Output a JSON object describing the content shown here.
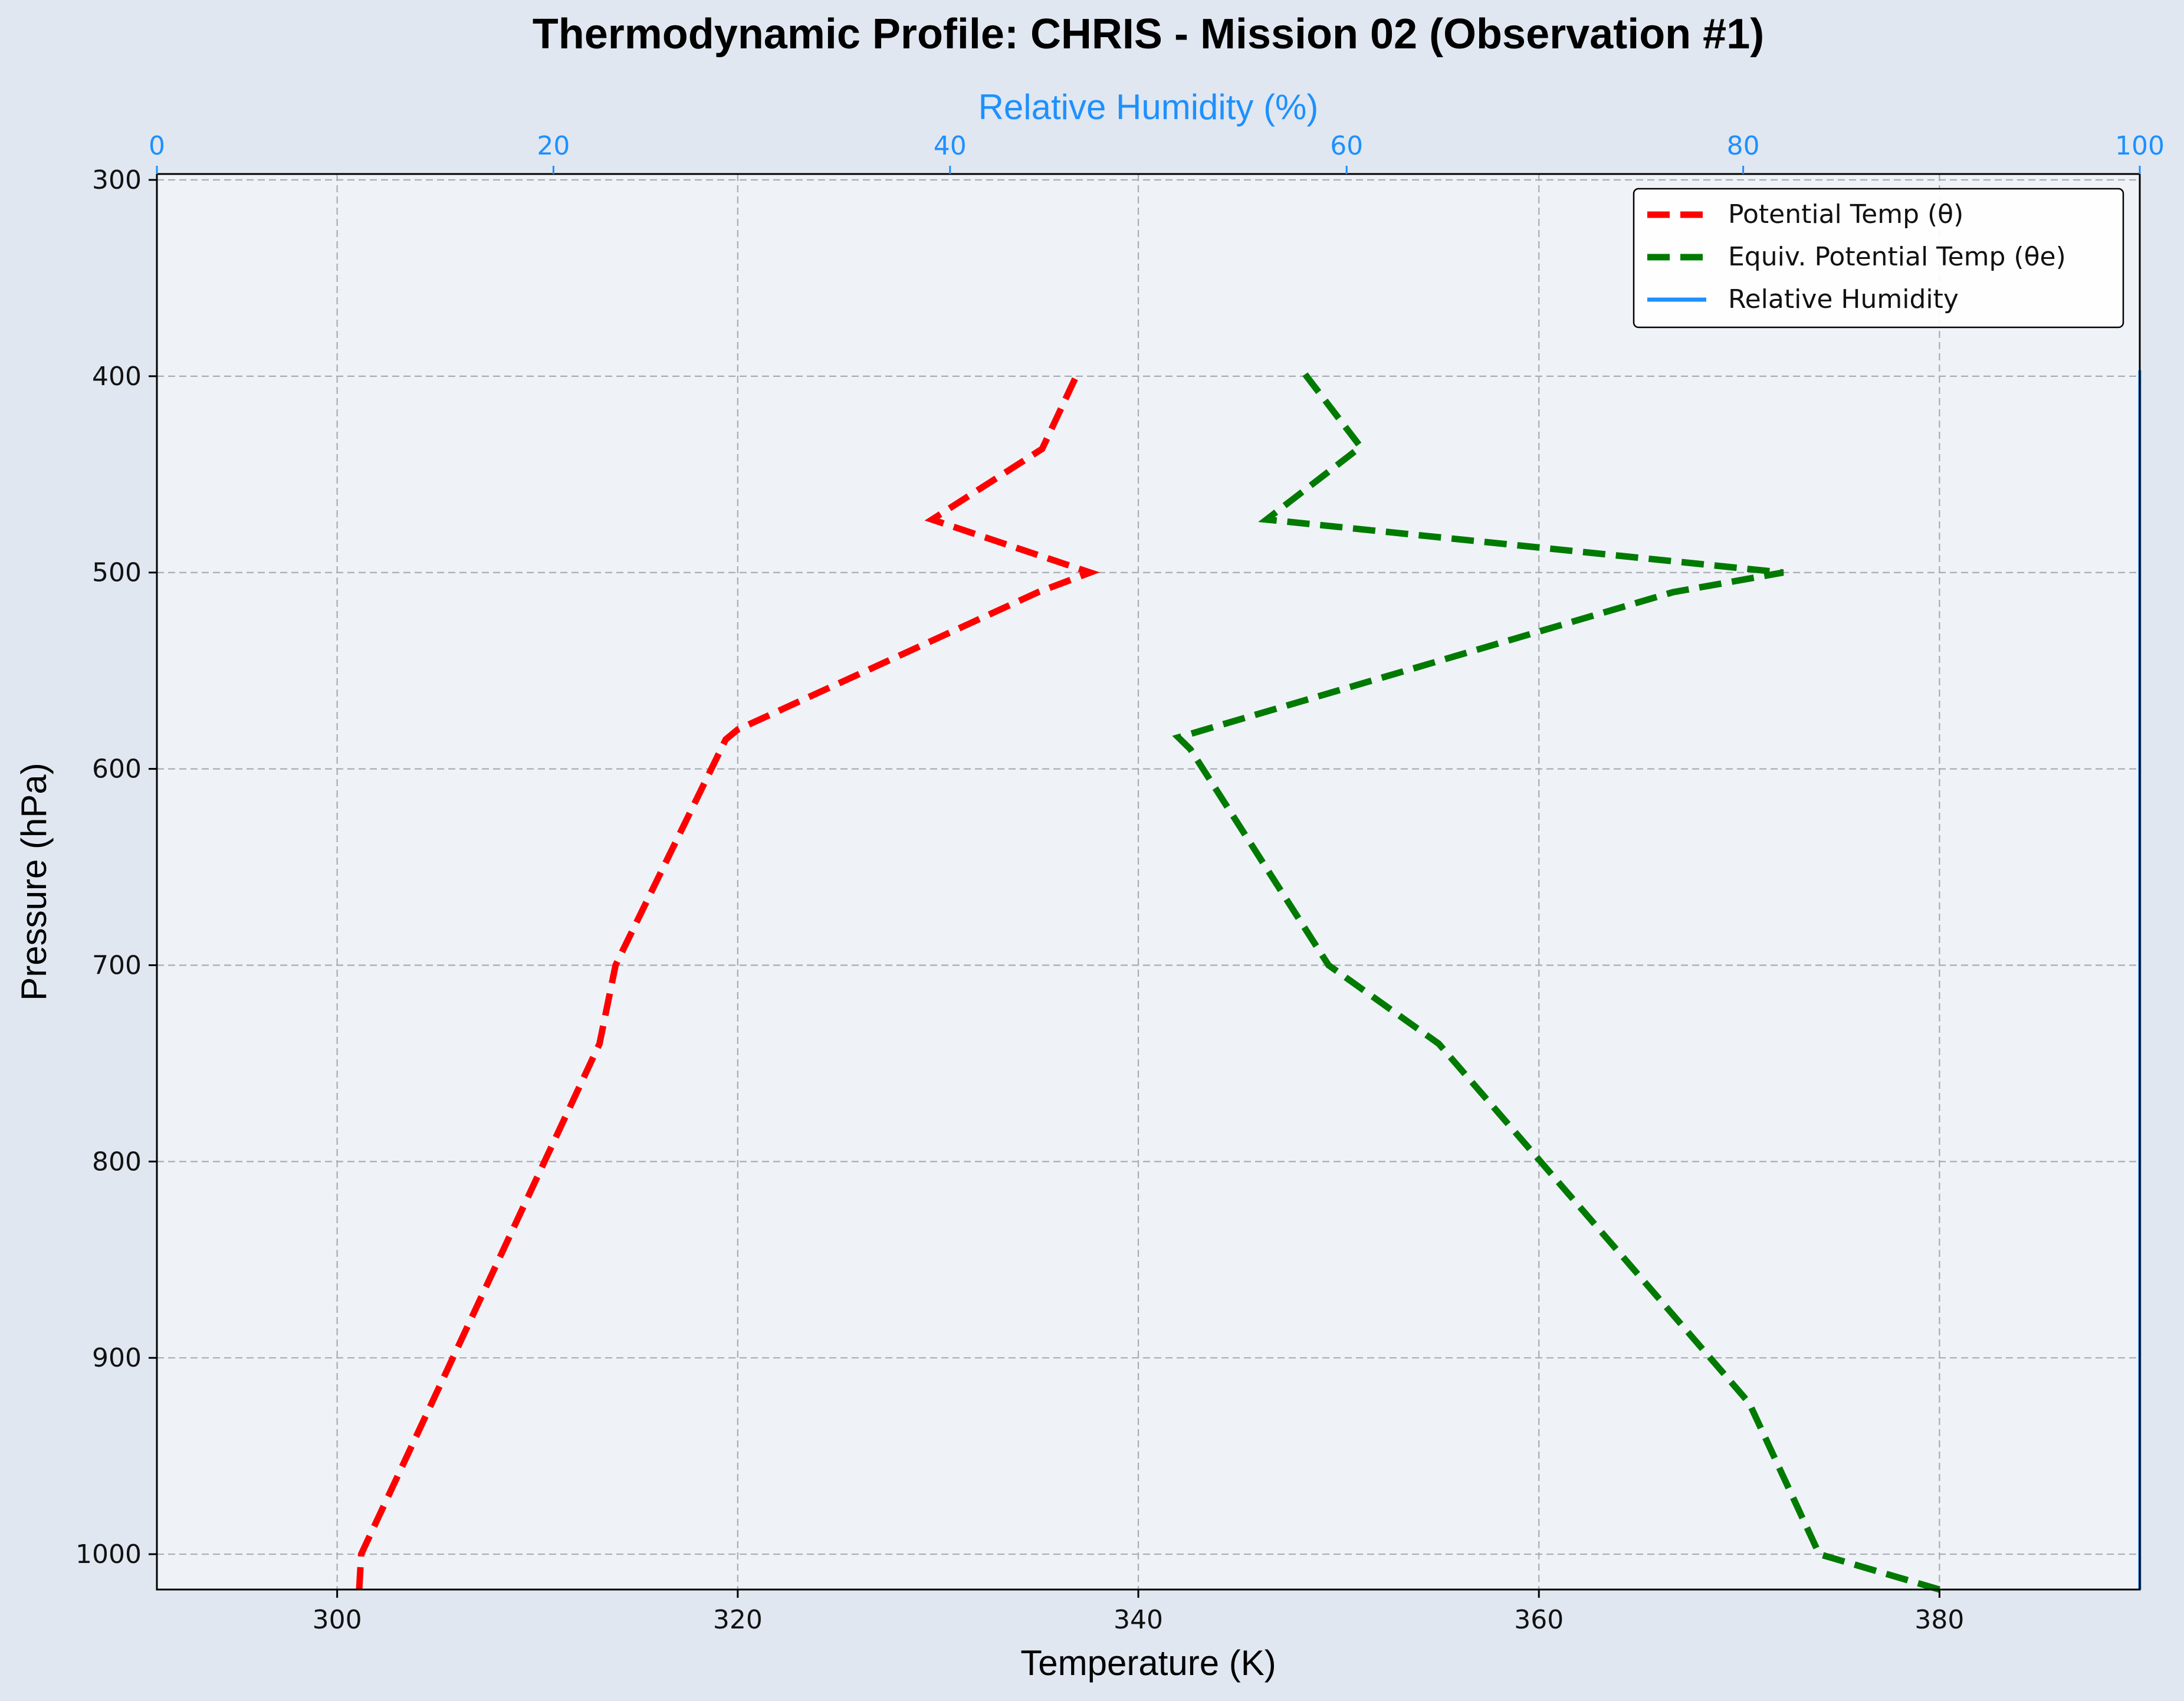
{
  "chart_data": {
    "type": "line",
    "title": "Thermodynamic Profile:  CHRIS - Mission 02 (Observation #1)",
    "xlabel": "Temperature (K)",
    "ylabel": "Pressure (hPa)",
    "x2label": "Relative Humidity (%)",
    "xlim": [
      291,
      390
    ],
    "x2lim": [
      0,
      100
    ],
    "ylim": [
      1018,
      297
    ],
    "y_inverted": true,
    "x_ticks": [
      "300",
      "320",
      "340",
      "360",
      "380"
    ],
    "x2_ticks": [
      "0",
      "20",
      "40",
      "60",
      "80",
      "100"
    ],
    "y_ticks": [
      "300",
      "400",
      "500",
      "600",
      "700",
      "800",
      "900",
      "1000"
    ],
    "grid": true,
    "legend_position": "top-right",
    "colors": {
      "theta": "#ff0000",
      "theta_e": "#007a00",
      "rh": "#1e90ff",
      "axis_rh": "#1e90ff",
      "plot_bg": "#eff3f8",
      "page_bg": "#e0e7f0"
    },
    "series": [
      {
        "name": "Potential Temp (θ)",
        "axis": "temperature",
        "style": "dashed",
        "color": "#ff0000",
        "points": [
          [
            301.1,
            1018
          ],
          [
            301.2,
            1000
          ],
          [
            313.1,
            740
          ],
          [
            313.9,
            700
          ],
          [
            319.4,
            585
          ],
          [
            320.0,
            580
          ],
          [
            335.0,
            510
          ],
          [
            337.6,
            500
          ],
          [
            329.7,
            473
          ],
          [
            335.2,
            437
          ],
          [
            336.9,
            400
          ],
          [
            336.7,
            398
          ]
        ]
      },
      {
        "name": "Equiv. Potential Temp (θe)",
        "axis": "temperature",
        "style": "dashed",
        "color": "#007a00",
        "points": [
          [
            380.0,
            1018
          ],
          [
            374.0,
            1000
          ],
          [
            370.5,
            923
          ],
          [
            355.0,
            740
          ],
          [
            349.5,
            700
          ],
          [
            342.6,
            590
          ],
          [
            342.0,
            584
          ],
          [
            366.7,
            510
          ],
          [
            372.2,
            500
          ],
          [
            346.4,
            473
          ],
          [
            351.1,
            436
          ],
          [
            348.4,
            400
          ],
          [
            348.2,
            397
          ]
        ]
      },
      {
        "name": "Relative Humidity",
        "axis": "rh",
        "style": "solid",
        "color": "#1e90ff",
        "points": [
          [
            100,
            1018
          ],
          [
            100,
            397
          ]
        ]
      }
    ]
  }
}
